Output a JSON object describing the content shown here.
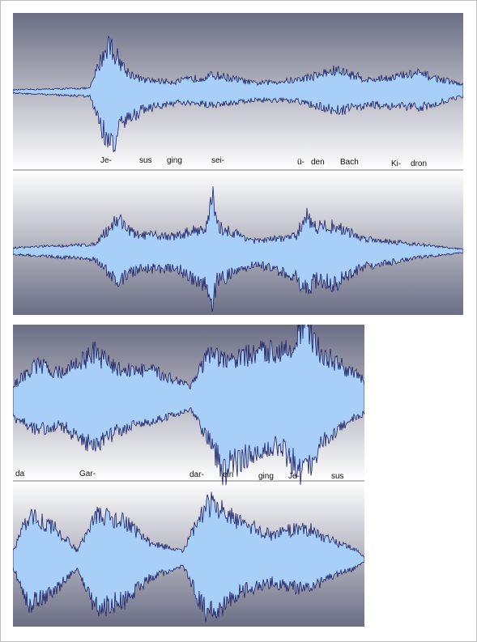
{
  "colors": {
    "wave_fill": "#a8cff8",
    "wave_stroke": "#1e2266",
    "bg_dark": "#6b6e84",
    "bg_light": "#ffffff",
    "divider": "#7a7a7a"
  },
  "top": {
    "lyrics": [
      "Je-",
      "sus",
      "ging",
      "sei-",
      "ü-",
      "den",
      "Bach",
      "Ki-",
      "dron"
    ]
  },
  "bottom": {
    "lyrics": [
      "da",
      "Gar-",
      "dar-",
      "ein",
      "ging",
      "Je-",
      "sus"
    ]
  }
}
